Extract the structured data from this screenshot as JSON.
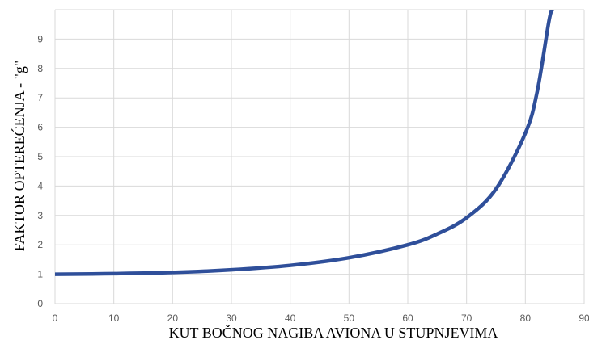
{
  "chart_data": {
    "type": "line",
    "title": "",
    "xlabel": "KUT BOČNOG NAGIBA AVIONA U STUPNJEVIMA",
    "ylabel": "FAKTOR OPTEREĆENJA - \"g\"",
    "xlim": [
      0,
      90
    ],
    "ylim": [
      0,
      10
    ],
    "x_ticks": [
      "0",
      "10",
      "20",
      "30",
      "40",
      "50",
      "60",
      "70",
      "80",
      "90"
    ],
    "y_ticks": [
      "0",
      "1",
      "2",
      "3",
      "4",
      "5",
      "6",
      "7",
      "8",
      "9"
    ],
    "grid": true,
    "legend": "none",
    "series": [
      {
        "color": "#2f4f9a",
        "x": [
          0,
          10,
          20,
          30,
          40,
          50,
          60,
          65,
          70,
          75,
          80,
          82,
          84,
          84.6
        ],
        "y": [
          1.0,
          1.02,
          1.06,
          1.15,
          1.3,
          1.56,
          2.0,
          2.37,
          2.92,
          3.9,
          5.8,
          7.2,
          9.6,
          10.0
        ]
      }
    ]
  }
}
